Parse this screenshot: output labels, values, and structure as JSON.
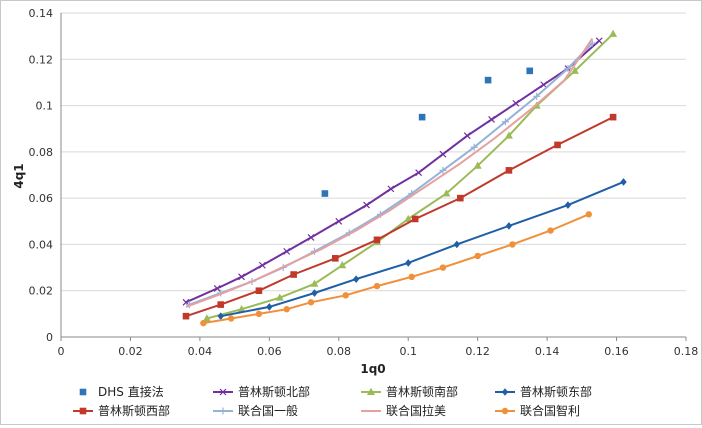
{
  "chart_data": {
    "type": "line",
    "xlabel": "1q0",
    "ylabel": "4q1",
    "xlim": [
      0,
      0.18
    ],
    "ylim": [
      0,
      0.14
    ],
    "x_ticks": [
      "0",
      "0.02",
      "0.04",
      "0.06",
      "0.08",
      "0.1",
      "0.12",
      "0.14",
      "0.16",
      "0.18"
    ],
    "y_ticks": [
      "0",
      "0.02",
      "0.04",
      "0.06",
      "0.08",
      "0.1",
      "0.12",
      "0.14"
    ],
    "grid": "horizontal",
    "legend_position": "bottom",
    "series": [
      {
        "name": "DHS 直接法",
        "style": "scatter",
        "marker": "square",
        "color": "#2e75b6",
        "x": [
          0.076,
          0.104,
          0.123,
          0.135
        ],
        "y": [
          0.062,
          0.095,
          0.111,
          0.115
        ]
      },
      {
        "name": "普林斯顿北部",
        "style": "line",
        "marker": "x",
        "color": "#7030a0",
        "x": [
          0.036,
          0.045,
          0.052,
          0.058,
          0.065,
          0.072,
          0.08,
          0.088,
          0.095,
          0.103,
          0.11,
          0.117,
          0.124,
          0.131,
          0.139,
          0.146,
          0.155
        ],
        "y": [
          0.015,
          0.021,
          0.026,
          0.031,
          0.037,
          0.043,
          0.05,
          0.057,
          0.064,
          0.071,
          0.079,
          0.087,
          0.094,
          0.101,
          0.109,
          0.116,
          0.128
        ]
      },
      {
        "name": "普林斯顿南部",
        "style": "line",
        "marker": "triangle",
        "color": "#9bbb59",
        "x": [
          0.042,
          0.052,
          0.063,
          0.073,
          0.081,
          0.091,
          0.1,
          0.111,
          0.12,
          0.129,
          0.137,
          0.148,
          0.159
        ],
        "y": [
          0.008,
          0.012,
          0.017,
          0.023,
          0.031,
          0.041,
          0.051,
          0.062,
          0.074,
          0.087,
          0.1,
          0.115,
          0.131
        ]
      },
      {
        "name": "普林斯顿东部",
        "style": "line",
        "marker": "diamond",
        "color": "#1f5fa8",
        "x": [
          0.046,
          0.06,
          0.073,
          0.085,
          0.1,
          0.114,
          0.129,
          0.146,
          0.162
        ],
        "y": [
          0.009,
          0.013,
          0.019,
          0.025,
          0.032,
          0.04,
          0.048,
          0.057,
          0.067
        ]
      },
      {
        "name": "普林斯顿西部",
        "style": "line",
        "marker": "square",
        "color": "#c0392b",
        "x": [
          0.036,
          0.046,
          0.057,
          0.067,
          0.079,
          0.091,
          0.102,
          0.115,
          0.129,
          0.143,
          0.159
        ],
        "y": [
          0.009,
          0.014,
          0.02,
          0.027,
          0.034,
          0.042,
          0.051,
          0.06,
          0.072,
          0.083,
          0.095
        ]
      },
      {
        "name": "联合国一般",
        "style": "line",
        "marker": "plus",
        "color": "#95b3d7",
        "x": [
          0.037,
          0.046,
          0.055,
          0.064,
          0.073,
          0.083,
          0.092,
          0.101,
          0.11,
          0.119,
          0.128,
          0.137,
          0.146,
          0.153
        ],
        "y": [
          0.014,
          0.019,
          0.024,
          0.03,
          0.037,
          0.045,
          0.053,
          0.062,
          0.072,
          0.082,
          0.093,
          0.104,
          0.116,
          0.127
        ]
      },
      {
        "name": "联合国拉美",
        "style": "line",
        "marker": "none",
        "color": "#e6a0a0",
        "x": [
          0.036,
          0.045,
          0.055,
          0.065,
          0.075,
          0.085,
          0.095,
          0.105,
          0.115,
          0.125,
          0.135,
          0.145,
          0.153
        ],
        "y": [
          0.013,
          0.018,
          0.024,
          0.031,
          0.038,
          0.046,
          0.055,
          0.065,
          0.075,
          0.086,
          0.098,
          0.111,
          0.129
        ]
      },
      {
        "name": "联合国智利",
        "style": "line",
        "marker": "circle",
        "color": "#f0903a",
        "x": [
          0.041,
          0.049,
          0.057,
          0.065,
          0.072,
          0.082,
          0.091,
          0.101,
          0.11,
          0.12,
          0.13,
          0.141,
          0.152
        ],
        "y": [
          0.006,
          0.008,
          0.01,
          0.012,
          0.015,
          0.018,
          0.022,
          0.026,
          0.03,
          0.035,
          0.04,
          0.046,
          0.053
        ]
      }
    ]
  }
}
